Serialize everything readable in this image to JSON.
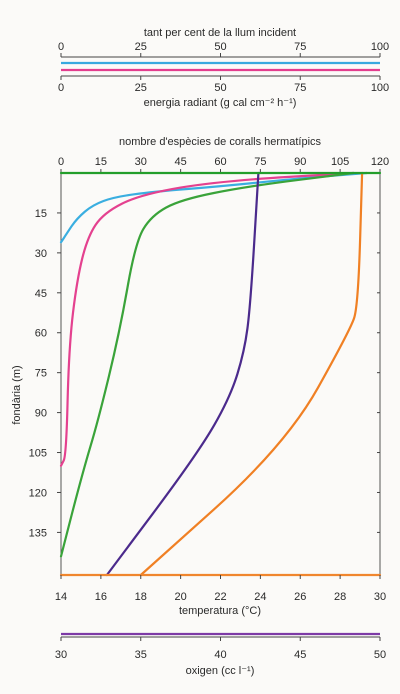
{
  "chart_data": [
    {
      "type": "line",
      "title": "",
      "axes": {
        "top": {
          "label": "tant per cent de la llum incident",
          "ticks": [
            "0",
            "25",
            "50",
            "75",
            "100"
          ],
          "range": [
            0,
            100
          ]
        },
        "bottom": {
          "label": "energia radiant (g cal cm⁻² h⁻¹)",
          "ticks": [
            "0",
            "25",
            "50",
            "75",
            "100"
          ],
          "range": [
            0,
            100
          ]
        }
      },
      "series": [],
      "lines_colors": {
        "light": "#38a9df",
        "radiant": "#e33d8e"
      },
      "grid": false
    },
    {
      "type": "line",
      "title": "",
      "ylabel": "fondària (m)",
      "ylim": [
        0,
        148
      ],
      "y_inverted": true,
      "y_ticks": [
        "15",
        "30",
        "45",
        "60",
        "75",
        "90",
        "105",
        "120",
        "135"
      ],
      "axes": {
        "top": {
          "label": "nombre d'espècies de coralls hermatípics",
          "ticks": [
            "0",
            "15",
            "30",
            "45",
            "60",
            "75",
            "90",
            "105",
            "120"
          ],
          "range": [
            0,
            120
          ]
        },
        "bottom": {
          "label": "temperatura (°C)",
          "ticks": [
            "14",
            "16",
            "18",
            "20",
            "22",
            "24",
            "26",
            "28",
            "30"
          ],
          "range": [
            14,
            30
          ]
        }
      },
      "series": [
        {
          "color": "#3aaee0",
          "axis": "top",
          "points": [
            [
              0,
              26
            ],
            [
              2,
              23
            ],
            [
              6,
              17
            ],
            [
              12,
              12
            ],
            [
              20,
              9
            ],
            [
              35,
              7
            ],
            [
              60,
              5
            ],
            [
              90,
              2
            ],
            [
              115,
              0
            ]
          ]
        },
        {
          "color": "#e4418f",
          "axis": "top",
          "points": [
            [
              0,
              110
            ],
            [
              2,
              106
            ],
            [
              3,
              65
            ],
            [
              6,
              40
            ],
            [
              10,
              24
            ],
            [
              16,
              15
            ],
            [
              30,
              8
            ],
            [
              60,
              3
            ],
            [
              110,
              0
            ]
          ]
        },
        {
          "color": "#3aa33a",
          "axis": "top",
          "points": [
            [
              0,
              144
            ],
            [
              8,
              113
            ],
            [
              14,
              93
            ],
            [
              22,
              60
            ],
            [
              28,
              26
            ],
            [
              34,
              16
            ],
            [
              45,
              10
            ],
            [
              70,
              5
            ],
            [
              110,
              0
            ]
          ]
        },
        {
          "color": "#4b2a8c",
          "axis": "bottom",
          "points": [
            [
              16.3,
              151
            ],
            [
              20.9,
              105
            ],
            [
              22.5,
              84
            ],
            [
              23.2,
              67
            ],
            [
              23.5,
              50
            ],
            [
              23.9,
              0
            ]
          ]
        },
        {
          "color": "#f08024",
          "axis": "bottom",
          "points": [
            [
              18.0,
              151
            ],
            [
              25.3,
              102
            ],
            [
              28.5,
              59
            ],
            [
              28.9,
              50
            ],
            [
              29.1,
              0
            ]
          ]
        },
        {
          "color": "#239e2b",
          "axis": "bottom",
          "points": [
            [
              14,
              0
            ],
            [
              30,
              0
            ]
          ]
        },
        {
          "color": "#f0862e",
          "axis": "bottom",
          "points": [
            [
              14,
              151
            ],
            [
              30,
              151
            ]
          ]
        }
      ],
      "grid": false
    },
    {
      "type": "line",
      "title": "",
      "axes": {
        "top": {
          "label": "",
          "ticks": [],
          "range": [
            30,
            50
          ]
        },
        "bottom": {
          "label": "oxigen (cc l⁻¹)",
          "ticks": [
            "30",
            "35",
            "40",
            "45",
            "50"
          ],
          "range": [
            30,
            50
          ]
        }
      },
      "series": [],
      "lines_colors": {
        "oxygen": "#7d3aa6"
      },
      "grid": false
    }
  ]
}
